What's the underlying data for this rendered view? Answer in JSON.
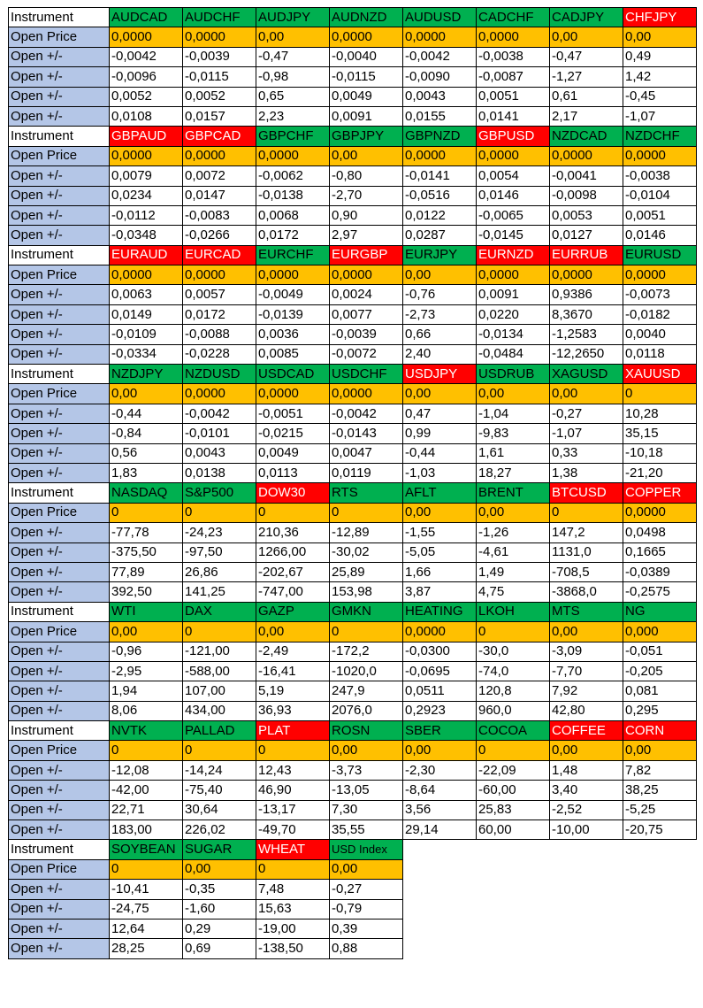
{
  "colors": {
    "green": "#00b050",
    "red": "#ff0000",
    "orange": "#ffc000",
    "label_blue": "#b4c6e7"
  },
  "labels": {
    "instrument": "Instrument",
    "open_price": "Open Price",
    "open_delta": "Open +/-"
  },
  "blocks": [
    {
      "instruments": [
        {
          "name": "AUDCAD",
          "status": "green"
        },
        {
          "name": "AUDCHF",
          "status": "green"
        },
        {
          "name": "AUDJPY",
          "status": "green"
        },
        {
          "name": "AUDNZD",
          "status": "green"
        },
        {
          "name": "AUDUSD",
          "status": "green"
        },
        {
          "name": "CADCHF",
          "status": "green"
        },
        {
          "name": "CADJPY",
          "status": "green"
        },
        {
          "name": "CHFJPY",
          "status": "red"
        }
      ],
      "open_price": [
        "0,0000",
        "0,0000",
        "0,00",
        "0,0000",
        "0,0000",
        "0,0000",
        "0,00",
        "0,00"
      ],
      "deltas": [
        [
          "-0,0042",
          "-0,0039",
          "-0,47",
          "-0,0040",
          "-0,0042",
          "-0,0038",
          "-0,47",
          "0,49"
        ],
        [
          "-0,0096",
          "-0,0115",
          "-0,98",
          "-0,0115",
          "-0,0090",
          "-0,0087",
          "-1,27",
          "1,42"
        ],
        [
          "0,0052",
          "0,0052",
          "0,65",
          "0,0049",
          "0,0043",
          "0,0051",
          "0,61",
          "-0,45"
        ],
        [
          "0,0108",
          "0,0157",
          "2,23",
          "0,0091",
          "0,0155",
          "0,0141",
          "2,17",
          "-1,07"
        ]
      ]
    },
    {
      "instruments": [
        {
          "name": "GBPAUD",
          "status": "red"
        },
        {
          "name": "GBPCAD",
          "status": "red"
        },
        {
          "name": "GBPCHF",
          "status": "green"
        },
        {
          "name": "GBPJPY",
          "status": "green"
        },
        {
          "name": "GBPNZD",
          "status": "green"
        },
        {
          "name": "GBPUSD",
          "status": "red"
        },
        {
          "name": "NZDCAD",
          "status": "green"
        },
        {
          "name": "NZDCHF",
          "status": "green"
        }
      ],
      "open_price": [
        "0,0000",
        "0,0000",
        "0,0000",
        "0,00",
        "0,0000",
        "0,0000",
        "0,0000",
        "0,0000"
      ],
      "deltas": [
        [
          "0,0079",
          "0,0072",
          "-0,0062",
          "-0,80",
          "-0,0141",
          "0,0054",
          "-0,0041",
          "-0,0038"
        ],
        [
          "0,0234",
          "0,0147",
          "-0,0138",
          "-2,70",
          "-0,0516",
          "0,0146",
          "-0,0098",
          "-0,0104"
        ],
        [
          "-0,0112",
          "-0,0083",
          "0,0068",
          "0,90",
          "0,0122",
          "-0,0065",
          "0,0053",
          "0,0051"
        ],
        [
          "-0,0348",
          "-0,0266",
          "0,0172",
          "2,97",
          "0,0287",
          "-0,0145",
          "0,0127",
          "0,0146"
        ]
      ]
    },
    {
      "instruments": [
        {
          "name": "EURAUD",
          "status": "red"
        },
        {
          "name": "EURCAD",
          "status": "red"
        },
        {
          "name": "EURCHF",
          "status": "green"
        },
        {
          "name": "EURGBP",
          "status": "red"
        },
        {
          "name": "EURJPY",
          "status": "green"
        },
        {
          "name": "EURNZD",
          "status": "red"
        },
        {
          "name": "EURRUB",
          "status": "red"
        },
        {
          "name": "EURUSD",
          "status": "green"
        }
      ],
      "open_price": [
        "0,0000",
        "0,0000",
        "0,0000",
        "0,0000",
        "0,00",
        "0,0000",
        "0,0000",
        "0,0000"
      ],
      "deltas": [
        [
          "0,0063",
          "0,0057",
          "-0,0049",
          "0,0024",
          "-0,76",
          "0,0091",
          "0,9386",
          "-0,0073"
        ],
        [
          "0,0149",
          "0,0172",
          "-0,0139",
          "0,0077",
          "-2,73",
          "0,0220",
          "8,3670",
          "-0,0182"
        ],
        [
          "-0,0109",
          "-0,0088",
          "0,0036",
          "-0,0039",
          "0,66",
          "-0,0134",
          "-1,2583",
          "0,0040"
        ],
        [
          "-0,0334",
          "-0,0228",
          "0,0085",
          "-0,0072",
          "2,40",
          "-0,0484",
          "-12,2650",
          "0,0118"
        ]
      ]
    },
    {
      "instruments": [
        {
          "name": "NZDJPY",
          "status": "green"
        },
        {
          "name": "NZDUSD",
          "status": "green"
        },
        {
          "name": "USDCAD",
          "status": "green"
        },
        {
          "name": "USDCHF",
          "status": "green"
        },
        {
          "name": "USDJPY",
          "status": "red"
        },
        {
          "name": "USDRUB",
          "status": "green"
        },
        {
          "name": "XAGUSD",
          "status": "green"
        },
        {
          "name": "XAUUSD",
          "status": "red"
        }
      ],
      "open_price": [
        "0,00",
        "0,0000",
        "0,0000",
        "0,0000",
        "0,00",
        "0,00",
        "0,00",
        "0"
      ],
      "deltas": [
        [
          "-0,44",
          "-0,0042",
          "-0,0051",
          "-0,0042",
          "0,47",
          "-1,04",
          "-0,27",
          "10,28"
        ],
        [
          "-0,84",
          "-0,0101",
          "-0,0215",
          "-0,0143",
          "0,99",
          "-9,83",
          "-1,07",
          "35,15"
        ],
        [
          "0,56",
          "0,0043",
          "0,0049",
          "0,0047",
          "-0,44",
          "1,61",
          "0,33",
          "-10,18"
        ],
        [
          "1,83",
          "0,0138",
          "0,0113",
          "0,0119",
          "-1,03",
          "18,27",
          "1,38",
          "-21,20"
        ]
      ]
    },
    {
      "instruments": [
        {
          "name": "NASDAQ",
          "status": "green"
        },
        {
          "name": "S&P500",
          "status": "green"
        },
        {
          "name": "DOW30",
          "status": "red"
        },
        {
          "name": "RTS",
          "status": "green"
        },
        {
          "name": "AFLT",
          "status": "green"
        },
        {
          "name": "BRENT",
          "status": "green"
        },
        {
          "name": "BTCUSD",
          "status": "red"
        },
        {
          "name": "COPPER",
          "status": "red"
        }
      ],
      "open_price": [
        "0",
        "0",
        "0",
        "0",
        "0,00",
        "0,00",
        "0",
        "0,0000"
      ],
      "deltas": [
        [
          "-77,78",
          "-24,23",
          "210,36",
          "-12,89",
          "-1,55",
          "-1,26",
          "147,2",
          "0,0498"
        ],
        [
          "-375,50",
          "-97,50",
          "1266,00",
          "-30,02",
          "-5,05",
          "-4,61",
          "1131,0",
          "0,1665"
        ],
        [
          "77,89",
          "26,86",
          "-202,67",
          "25,89",
          "1,66",
          "1,49",
          "-708,5",
          "-0,0389"
        ],
        [
          "392,50",
          "141,25",
          "-747,00",
          "153,98",
          "3,87",
          "4,75",
          "-3868,0",
          "-0,2575"
        ]
      ]
    },
    {
      "instruments": [
        {
          "name": "WTI",
          "status": "green"
        },
        {
          "name": "DAX",
          "status": "green"
        },
        {
          "name": "GAZP",
          "status": "green"
        },
        {
          "name": "GMKN",
          "status": "green"
        },
        {
          "name": "HEATING",
          "status": "green"
        },
        {
          "name": "LKOH",
          "status": "green"
        },
        {
          "name": "MTS",
          "status": "green"
        },
        {
          "name": "NG",
          "status": "green"
        }
      ],
      "open_price": [
        "0,00",
        "0",
        "0,00",
        "0",
        "0,0000",
        "0",
        "0,00",
        "0,000"
      ],
      "deltas": [
        [
          "-0,96",
          "-121,00",
          "-2,49",
          "-172,2",
          "-0,0300",
          "-30,0",
          "-3,09",
          "-0,051"
        ],
        [
          "-2,95",
          "-588,00",
          "-16,41",
          "-1020,0",
          "-0,0695",
          "-74,0",
          "-7,70",
          "-0,205"
        ],
        [
          "1,94",
          "107,00",
          "5,19",
          "247,9",
          "0,0511",
          "120,8",
          "7,92",
          "0,081"
        ],
        [
          "8,06",
          "434,00",
          "36,93",
          "2076,0",
          "0,2923",
          "960,0",
          "42,80",
          "0,295"
        ]
      ]
    },
    {
      "instruments": [
        {
          "name": "NVTK",
          "status": "green"
        },
        {
          "name": "PALLAD",
          "status": "green"
        },
        {
          "name": "PLAT",
          "status": "red"
        },
        {
          "name": "ROSN",
          "status": "green"
        },
        {
          "name": "SBER",
          "status": "green"
        },
        {
          "name": "COCOA",
          "status": "green"
        },
        {
          "name": "COFFEE",
          "status": "red"
        },
        {
          "name": "CORN",
          "status": "red"
        }
      ],
      "open_price": [
        "0",
        "0",
        "0",
        "0,00",
        "0,00",
        "0",
        "0,00",
        "0,00"
      ],
      "deltas": [
        [
          "-12,08",
          "-14,24",
          "12,43",
          "-3,73",
          "-2,30",
          "-22,09",
          "1,48",
          "7,82"
        ],
        [
          "-42,00",
          "-75,40",
          "46,90",
          "-13,05",
          "-8,64",
          "-60,00",
          "3,40",
          "38,25"
        ],
        [
          "22,71",
          "30,64",
          "-13,17",
          "7,30",
          "3,56",
          "25,83",
          "-2,52",
          "-5,25"
        ],
        [
          "183,00",
          "226,02",
          "-49,70",
          "35,55",
          "29,14",
          "60,00",
          "-10,00",
          "-20,75"
        ]
      ]
    },
    {
      "instruments": [
        {
          "name": "SOYBEAN",
          "status": "green"
        },
        {
          "name": "SUGAR",
          "status": "green"
        },
        {
          "name": "WHEAT",
          "status": "red"
        },
        {
          "name": "USD Index",
          "status": "green"
        }
      ],
      "open_price": [
        "0",
        "0,00",
        "0",
        "0,00"
      ],
      "deltas": [
        [
          "-10,41",
          "-0,35",
          "7,48",
          "-0,27"
        ],
        [
          "-24,75",
          "-1,60",
          "15,63",
          "-0,79"
        ],
        [
          "12,64",
          "0,29",
          "-19,00",
          "0,39"
        ],
        [
          "28,25",
          "0,69",
          "-138,50",
          "0,88"
        ]
      ]
    }
  ]
}
